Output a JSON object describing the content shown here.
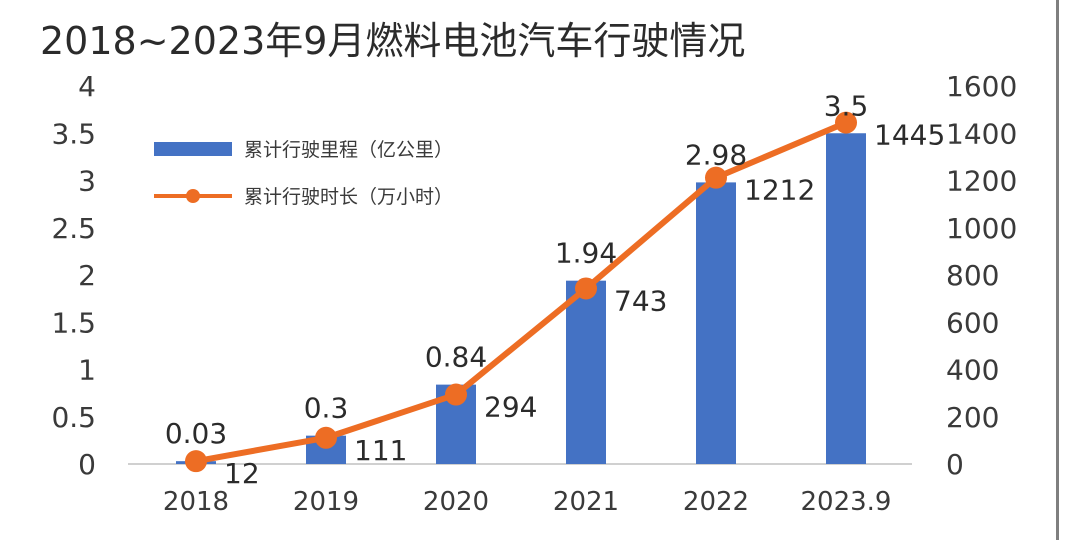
{
  "chart_data": {
    "type": "bar+line",
    "title": "2018~2023年9月燃料电池汽车行驶情况",
    "categories": [
      "2018",
      "2019",
      "2020",
      "2021",
      "2022",
      "2023.9"
    ],
    "series": [
      {
        "name": "累计行驶里程（亿公里）",
        "type": "bar",
        "axis": "left",
        "color": "#4472c4",
        "values": [
          0.03,
          0.3,
          0.84,
          1.94,
          2.98,
          3.5
        ],
        "labels": [
          "0.03",
          "0.3",
          "0.84",
          "1.94",
          "2.98",
          "3.5"
        ]
      },
      {
        "name": "累计行驶时长（万小时）",
        "type": "line",
        "axis": "right",
        "color": "#ed6d24",
        "values": [
          12,
          111,
          294,
          743,
          1212,
          1445
        ],
        "labels": [
          "12",
          "111",
          "294",
          "743",
          "1212",
          "1445"
        ]
      }
    ],
    "y_left": {
      "min": 0,
      "max": 4,
      "ticks": [
        0,
        0.5,
        1,
        1.5,
        2,
        2.5,
        3,
        3.5,
        4
      ],
      "tick_labels": [
        "0",
        "0.5",
        "1",
        "1.5",
        "2",
        "2.5",
        "3",
        "3.5",
        "4"
      ]
    },
    "y_right": {
      "min": 0,
      "max": 1600,
      "ticks": [
        0,
        200,
        400,
        600,
        800,
        1000,
        1200,
        1400,
        1600
      ],
      "tick_labels": [
        "0",
        "200",
        "400",
        "600",
        "800",
        "1000",
        "1200",
        "1400",
        "1600"
      ]
    },
    "grid": false,
    "legend_position": "top-left"
  }
}
